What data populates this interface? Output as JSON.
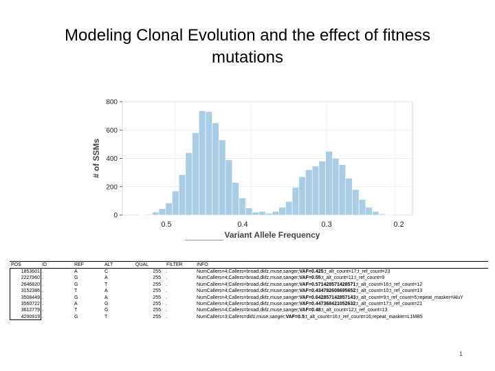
{
  "slide": {
    "title": "Modeling Clonal Evolution and the effect of fitness mutations",
    "page_number": "1"
  },
  "chart_data": {
    "type": "bar",
    "title": "",
    "xlabel": "Variant Allele Frequency",
    "ylabel": "# of SSMs",
    "ylim": [
      0,
      800
    ],
    "y_ticks": [
      "0",
      "200",
      "400",
      "600",
      "800"
    ],
    "x_tick_labels": [
      "0.5",
      "0.4",
      "0.3",
      "0.2"
    ],
    "bar_color": "#a9cde4",
    "grid": true,
    "values": [
      2,
      5,
      20,
      45,
      85,
      170,
      285,
      440,
      580,
      735,
      730,
      650,
      530,
      390,
      230,
      120,
      50,
      20,
      25,
      12,
      25,
      55,
      95,
      195,
      270,
      320,
      345,
      380,
      450,
      400,
      355,
      260,
      180,
      110,
      55,
      25,
      8,
      3
    ]
  },
  "vcf_table": {
    "headers": [
      "POS",
      "ID",
      "REF",
      "ALT",
      "QUAL",
      "FILTER",
      "INFO"
    ],
    "rows": [
      {
        "pos": "1853601",
        "id": ".",
        "ref": "A",
        "alt": "C",
        "qual": "255",
        "filter": ".",
        "info_pre": "NumCallers=4;Callers=broad,dkfz,muse,sanger;",
        "info_vaf": "VAF=0.425",
        "info_post": ";t_alt_count=17;t_ref_count=23"
      },
      {
        "pos": "2227960",
        "id": ".",
        "ref": "G",
        "alt": "A",
        "qual": "255",
        "filter": ".",
        "info_pre": "NumCallers=4;Callers=broad,dkfz,muse,sanger;",
        "info_vaf": "VAF=0.55",
        "info_post": ";t_alt_count=11;t_ref_count=9"
      },
      {
        "pos": "2646820",
        "id": ".",
        "ref": "G",
        "alt": "T",
        "qual": "255",
        "filter": ".",
        "info_pre": "NumCallers=4;Callers=broad,dkfz,muse,sanger;",
        "info_vaf": "VAF=0.571428571428571",
        "info_post": ";t_alt_count=16;t_ref_count=12"
      },
      {
        "pos": "3152386",
        "id": ".",
        "ref": "T",
        "alt": "A",
        "qual": "255",
        "filter": ".",
        "info_pre": "NumCallers=4;Callers=broad,dkfz,muse,sanger;",
        "info_vaf": "VAF=0.434782608695652",
        "info_post": ";t_alt_count=10;t_ref_count=13"
      },
      {
        "pos": "3508449",
        "id": ".",
        "ref": "G",
        "alt": "A",
        "qual": "255",
        "filter": ".",
        "info_pre": "NumCallers=4;Callers=broad,dkfz,muse,sanger;",
        "info_vaf": "VAF=0.642857142857143",
        "info_post": ";t_alt_count=9;t_ref_count=5;repeat_masker=AluY"
      },
      {
        "pos": "3560722",
        "id": ".",
        "ref": "A",
        "alt": "G",
        "qual": "255",
        "filter": ".",
        "info_pre": "NumCallers=4;Callers=broad,dkfz,muse,sanger;",
        "info_vaf": "VAF=0.447368421052632",
        "info_post": ";t_alt_count=17;t_ref_count=21"
      },
      {
        "pos": "3612779",
        "id": ".",
        "ref": "T",
        "alt": "G",
        "qual": "255",
        "filter": ".",
        "info_pre": "NumCallers=4;Callers=broad,dkfz,muse,sanger;",
        "info_vaf": "VAF=0.48",
        "info_post": ";t_alt_count=12;t_ref_count=13"
      },
      {
        "pos": "4200919",
        "id": ".",
        "ref": "G",
        "alt": "T",
        "qual": "255",
        "filter": ".",
        "info_pre": "NumCallers=3;Callers=dkfz,muse,sanger;",
        "info_vaf": "VAF=0.5",
        "info_post": ";t_alt_count=16;t_ref_count=16;repeat_masker=L1MB5"
      }
    ]
  }
}
